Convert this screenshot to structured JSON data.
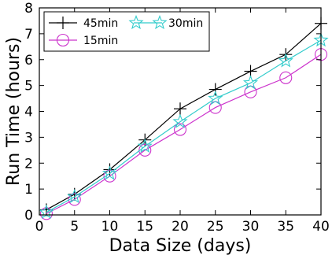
{
  "chart_data": {
    "type": "line",
    "title": "",
    "xlabel": "Data Size (days)",
    "ylabel": "Run Time (hours)",
    "xlim": [
      0,
      40
    ],
    "ylim": [
      0,
      8
    ],
    "xticks": [
      "0",
      "5",
      "10",
      "15",
      "20",
      "25",
      "30",
      "35",
      "40"
    ],
    "yticks": [
      "0",
      "1",
      "2",
      "3",
      "4",
      "5",
      "6",
      "7",
      "8"
    ],
    "grid": false,
    "legend_position": "top-left",
    "x": [
      1,
      5,
      10,
      15,
      20,
      25,
      30,
      35,
      40
    ],
    "series": [
      {
        "name": "45min",
        "marker": "plus",
        "color": "#000000",
        "values": [
          0.2,
          0.8,
          1.75,
          2.9,
          4.1,
          4.85,
          5.55,
          6.2,
          7.4
        ]
      },
      {
        "name": "15min",
        "marker": "circle",
        "color": "#cc33cc",
        "values": [
          0.05,
          0.6,
          1.5,
          2.5,
          3.3,
          4.15,
          4.75,
          5.3,
          6.2
        ]
      },
      {
        "name": "30min",
        "marker": "star",
        "color": "#33cccc",
        "values": [
          0.1,
          0.7,
          1.6,
          2.65,
          3.6,
          4.5,
          5.1,
          5.95,
          6.75
        ]
      }
    ]
  }
}
